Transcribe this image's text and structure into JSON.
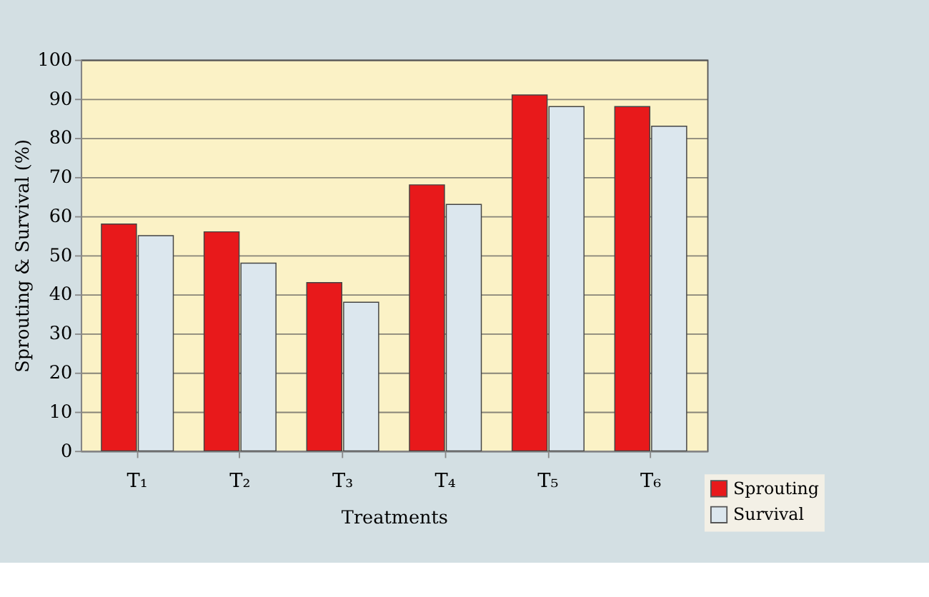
{
  "chart_data": {
    "type": "bar",
    "xlabel": "Treatments",
    "ylabel": "Sprouting & Survival (%)",
    "categories": [
      "T₁",
      "T₂",
      "T₃",
      "T₄",
      "T₅",
      "T₆"
    ],
    "series": [
      {
        "name": "Sprouting",
        "color": "#e8191b",
        "values": [
          58,
          56,
          43,
          68,
          91,
          88
        ]
      },
      {
        "name": "Survival",
        "color": "#dce7ee",
        "values": [
          55,
          48,
          38,
          63,
          88,
          83
        ]
      }
    ],
    "ylim": [
      0,
      100
    ],
    "yticks": [
      0,
      10,
      20,
      30,
      40,
      50,
      60,
      70,
      80,
      90,
      100
    ],
    "grid": "y",
    "legend": "bottom right"
  }
}
